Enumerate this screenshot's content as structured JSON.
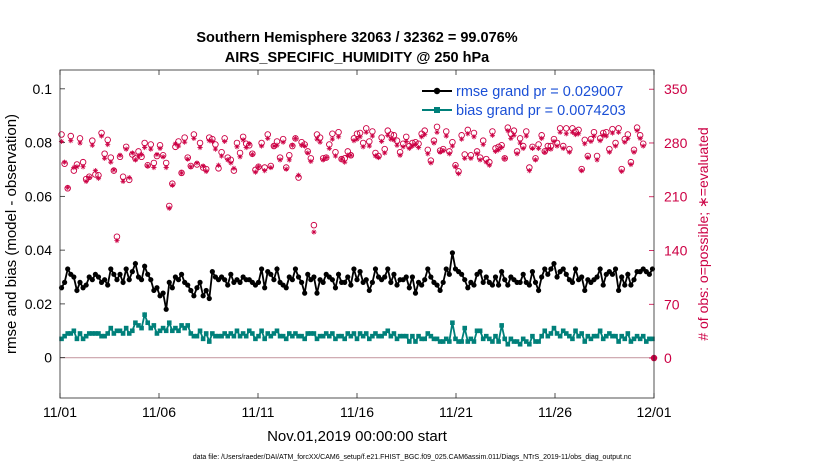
{
  "colors": {
    "rmse": "#000000",
    "bias": "#00807a",
    "obs": "#cc0044",
    "legend_text": "#1a4fd6",
    "zero_line": "#c9a0a8"
  },
  "chart_data": {
    "type": "line",
    "title": "Southern Hemisphere 32063 / 32362 = 99.076%",
    "subtitle": "AIRS_SPECIFIC_HUMIDITY @ 250 hPa",
    "xlabel": "Nov.01,2019 00:00:00 start",
    "ylabel_left": "rmse and bias (model - observation)",
    "ylabel_right": "# of obs: o=possible; ∗=evaluated",
    "footer": "data file: /Users/raeder/DAI/ATM_forcXX/CAM6_setup/f.e21.FHIST_BGC.f09_025.CAM6assim.011/Diags_NTrS_2019-11/obs_diag_output.nc",
    "xlim": [
      0,
      30
    ],
    "ylim_left": [
      -0.015,
      0.107
    ],
    "ylim_right": [
      -52,
      375
    ],
    "x_ticks": [
      0,
      5,
      10,
      15,
      20,
      25,
      30
    ],
    "x_tick_labels": [
      "11/01",
      "11/06",
      "11/11",
      "11/16",
      "11/21",
      "11/26",
      "12/01"
    ],
    "y_left_ticks": [
      0,
      0.02,
      0.04,
      0.06,
      0.08,
      0.1
    ],
    "y_left_tick_labels": [
      "0",
      "0.02",
      "0.04",
      "0.06",
      "0.08",
      "0.1"
    ],
    "y_right_ticks": [
      0,
      70,
      140,
      210,
      280,
      350
    ],
    "y_right_tick_labels": [
      "0",
      "70",
      "140",
      "210",
      "280",
      "350"
    ],
    "legend": [
      {
        "key": "rmse",
        "label": "rmse grand pr = 0.029007"
      },
      {
        "key": "bias",
        "label": "bias grand pr = 0.0074203"
      }
    ],
    "series": [
      {
        "name": "rmse",
        "values": [
          0.026,
          0.028,
          0.033,
          0.031,
          0.03,
          0.025,
          0.028,
          0.026,
          0.027,
          0.03,
          0.029,
          0.031,
          0.03,
          0.028,
          0.029,
          0.027,
          0.033,
          0.031,
          0.029,
          0.031,
          0.028,
          0.033,
          0.029,
          0.032,
          0.035,
          0.03,
          0.029,
          0.034,
          0.031,
          0.029,
          0.025,
          0.026,
          0.023,
          0.024,
          0.018,
          0.028,
          0.026,
          0.03,
          0.029,
          0.031,
          0.028,
          0.027,
          0.025,
          0.023,
          0.026,
          0.028,
          0.023,
          0.025,
          0.022,
          0.032,
          0.03,
          0.029,
          0.03,
          0.029,
          0.027,
          0.031,
          0.028,
          0.029,
          0.028,
          0.03,
          0.029,
          0.029,
          0.028,
          0.027,
          0.028,
          0.033,
          0.026,
          0.032,
          0.031,
          0.029,
          0.033,
          0.028,
          0.027,
          0.026,
          0.03,
          0.029,
          0.033,
          0.03,
          0.028,
          0.024,
          0.031,
          0.029,
          0.03,
          0.024,
          0.029,
          0.028,
          0.031,
          0.03,
          0.029,
          0.026,
          0.031,
          0.028,
          0.028,
          0.03,
          0.027,
          0.033,
          0.029,
          0.032,
          0.028,
          0.029,
          0.025,
          0.028,
          0.033,
          0.03,
          0.029,
          0.03,
          0.033,
          0.028,
          0.031,
          0.027,
          0.029,
          0.029,
          0.03,
          0.026,
          0.03,
          0.024,
          0.028,
          0.027,
          0.029,
          0.033,
          0.03,
          0.028,
          0.027,
          0.025,
          0.028,
          0.033,
          0.031,
          0.039,
          0.033,
          0.032,
          0.031,
          0.029,
          0.026,
          0.028,
          0.027,
          0.031,
          0.032,
          0.028,
          0.03,
          0.028,
          0.027,
          0.03,
          0.027,
          0.032,
          0.029,
          0.027,
          0.03,
          0.029,
          0.028,
          0.028,
          0.031,
          0.028,
          0.027,
          0.032,
          0.028,
          0.025,
          0.03,
          0.033,
          0.031,
          0.033,
          0.035,
          0.03,
          0.032,
          0.033,
          0.031,
          0.029,
          0.028,
          0.033,
          0.029,
          0.03,
          0.025,
          0.029,
          0.028,
          0.029,
          0.03,
          0.033,
          0.027,
          0.031,
          0.032,
          0.031,
          0.033,
          0.025,
          0.03,
          0.027,
          0.031,
          0.027,
          0.029,
          0.032,
          0.032,
          0.033,
          0.032,
          0.031,
          0.033
        ]
      },
      {
        "name": "bias",
        "values": [
          0.007,
          0.008,
          0.009,
          0.009,
          0.01,
          0.007,
          0.009,
          0.007,
          0.008,
          0.009,
          0.009,
          0.009,
          0.009,
          0.008,
          0.008,
          0.009,
          0.011,
          0.009,
          0.01,
          0.01,
          0.009,
          0.011,
          0.009,
          0.01,
          0.013,
          0.012,
          0.011,
          0.016,
          0.013,
          0.011,
          0.012,
          0.009,
          0.01,
          0.011,
          0.01,
          0.013,
          0.01,
          0.011,
          0.01,
          0.012,
          0.011,
          0.012,
          0.009,
          0.008,
          0.008,
          0.01,
          0.007,
          0.009,
          0.006,
          0.009,
          0.008,
          0.008,
          0.008,
          0.009,
          0.008,
          0.009,
          0.008,
          0.01,
          0.008,
          0.009,
          0.008,
          0.01,
          0.009,
          0.007,
          0.008,
          0.01,
          0.007,
          0.009,
          0.008,
          0.009,
          0.01,
          0.008,
          0.008,
          0.007,
          0.009,
          0.008,
          0.009,
          0.008,
          0.008,
          0.007,
          0.009,
          0.009,
          0.009,
          0.007,
          0.008,
          0.008,
          0.009,
          0.008,
          0.009,
          0.007,
          0.008,
          0.008,
          0.007,
          0.009,
          0.008,
          0.009,
          0.007,
          0.009,
          0.008,
          0.009,
          0.007,
          0.008,
          0.009,
          0.008,
          0.008,
          0.009,
          0.01,
          0.008,
          0.009,
          0.007,
          0.008,
          0.008,
          0.008,
          0.006,
          0.008,
          0.006,
          0.008,
          0.007,
          0.007,
          0.009,
          0.008,
          0.007,
          0.007,
          0.006,
          0.006,
          0.007,
          0.006,
          0.013,
          0.007,
          0.006,
          0.006,
          0.011,
          0.006,
          0.007,
          0.006,
          0.01,
          0.01,
          0.007,
          0.008,
          0.007,
          0.006,
          0.008,
          0.006,
          0.012,
          0.007,
          0.005,
          0.007,
          0.006,
          0.006,
          0.005,
          0.007,
          0.006,
          0.005,
          0.008,
          0.006,
          0.006,
          0.008,
          0.01,
          0.008,
          0.009,
          0.011,
          0.009,
          0.008,
          0.01,
          0.009,
          0.008,
          0.007,
          0.01,
          0.008,
          0.009,
          0.006,
          0.008,
          0.007,
          0.008,
          0.008,
          0.01,
          0.007,
          0.008,
          0.009,
          0.008,
          0.008,
          0.006,
          0.008,
          0.007,
          0.009,
          0.006,
          0.007,
          0.008,
          0.007,
          0.008,
          0.006,
          0.007,
          0.007
        ]
      },
      {
        "name": "obs_possible",
        "values": [
          291,
          253,
          221,
          289,
          244,
          252,
          286,
          255,
          233,
          236,
          283,
          239,
          238,
          293,
          266,
          284,
          261,
          244,
          158,
          262,
          236,
          275,
          232,
          265,
          260,
          269,
          262,
          280,
          251,
          278,
          254,
          263,
          277,
          264,
          254,
          198,
          227,
          275,
          282,
          241,
          287,
          261,
          250,
          291,
          252,
          280,
          248,
          246,
          287,
          285,
          278,
          247,
          268,
          286,
          261,
          258,
          244,
          280,
          267,
          288,
          279,
          277,
          266,
          245,
          249,
          280,
          248,
          291,
          250,
          276,
          282,
          261,
          285,
          248,
          264,
          276,
          286,
          235,
          281,
          278,
          269,
          260,
          173,
          291,
          287,
          260,
          261,
          278,
          292,
          268,
          294,
          259,
          260,
          269,
          264,
          286,
          292,
          293,
          280,
          299,
          282,
          295,
          267,
          263,
          287,
          272,
          296,
          291,
          290,
          283,
          268,
          279,
          288,
          276,
          280,
          281,
          279,
          292,
          296,
          271,
          257,
          283,
          301,
          270,
          272,
          295,
          269,
          281,
          251,
          243,
          290,
          265,
          297,
          264,
          293,
          269,
          261,
          283,
          259,
          255,
          295,
          273,
          275,
          277,
          260,
          300,
          292,
          296,
          269,
          286,
          276,
          295,
          248,
          275,
          260,
          278,
          290,
          269,
          276,
          276,
          285,
          280,
          299,
          276,
          299,
          272,
          299,
          295,
          297,
          246,
          284,
          263,
          285,
          294,
          263,
          286,
          293,
          294,
          272,
          298,
          280,
          299,
          246,
          285,
          291,
          255,
          271,
          300,
          290,
          279
        ]
      },
      {
        "name": "obs_evaluated",
        "values": [
          282,
          255,
          222,
          283,
          248,
          249,
          280,
          249,
          230,
          235,
          277,
          244,
          234,
          289,
          260,
          278,
          255,
          245,
          153,
          264,
          230,
          272,
          235,
          267,
          258,
          263,
          265,
          274,
          250,
          272,
          248,
          265,
          273,
          262,
          248,
          195,
          225,
          279,
          276,
          241,
          281,
          259,
          249,
          286,
          254,
          274,
          250,
          243,
          283,
          282,
          272,
          251,
          263,
          282,
          258,
          254,
          247,
          275,
          262,
          284,
          274,
          279,
          265,
          242,
          249,
          276,
          244,
          286,
          248,
          276,
          277,
          258,
          281,
          246,
          258,
          277,
          286,
          238,
          277,
          276,
          267,
          256,
          164,
          285,
          281,
          258,
          261,
          273,
          285,
          263,
          288,
          259,
          255,
          264,
          264,
          283,
          285,
          288,
          275,
          294,
          276,
          289,
          263,
          261,
          282,
          267,
          290,
          285,
          284,
          277,
          264,
          275,
          282,
          273,
          276,
          278,
          274,
          288,
          291,
          266,
          254,
          280,
          294,
          268,
          270,
          289,
          266,
          276,
          249,
          240,
          285,
          260,
          292,
          260,
          288,
          266,
          258,
          278,
          255,
          251,
          290,
          269,
          271,
          274,
          260,
          296,
          286,
          290,
          266,
          280,
          273,
          289,
          244,
          273,
          258,
          273,
          286,
          268,
          272,
          272,
          282,
          276,
          294,
          273,
          292,
          268,
          294,
          291,
          292,
          244,
          279,
          261,
          282,
          289,
          258,
          283,
          290,
          289,
          268,
          293,
          276,
          294,
          243,
          281,
          286,
          252,
          268,
          296,
          286,
          276
        ]
      }
    ]
  }
}
